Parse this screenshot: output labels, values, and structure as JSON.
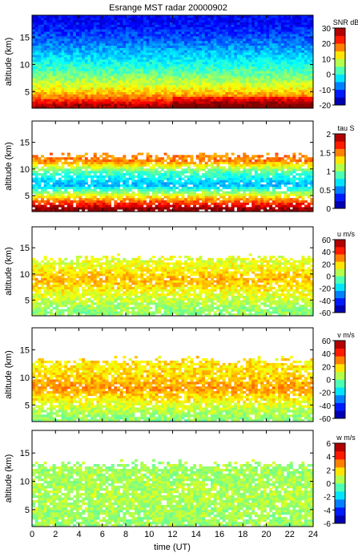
{
  "chart_data": {
    "type": "heatmap",
    "title": "Esrange MST radar 20000902",
    "xlabel": "time (UT)",
    "xlim": [
      0,
      24
    ],
    "x_ticks": [
      "0",
      "2",
      "4",
      "6",
      "8",
      "10",
      "12",
      "14",
      "16",
      "18",
      "20",
      "22",
      "24"
    ],
    "panels": [
      {
        "variable": "snr",
        "ylabel": "altitude (km)",
        "ylim": [
          2,
          19
        ],
        "y_ticks": [
          "5",
          "10",
          "15"
        ],
        "colorbar_label": "SNR dB",
        "colorbar_range": [
          -20,
          30
        ],
        "colorbar_ticks": [
          "30",
          "20",
          "10",
          "0",
          "-10",
          "-20"
        ],
        "description_profile": [
          {
            "altitude": 2.5,
            "value": 28
          },
          {
            "altitude": 4,
            "value": 18
          },
          {
            "altitude": 6,
            "value": 10
          },
          {
            "altitude": 9,
            "value": 2
          },
          {
            "altitude": 12,
            "value": -4
          },
          {
            "altitude": 15,
            "value": -10
          },
          {
            "altitude": 18,
            "value": -14
          }
        ]
      },
      {
        "variable": "tau",
        "ylabel": "altitude (km)",
        "ylim": [
          2,
          19
        ],
        "y_ticks": [
          "5",
          "10",
          "15"
        ],
        "colorbar_label": "tau S",
        "colorbar_range": [
          0,
          2
        ],
        "colorbar_ticks": [
          "2",
          "1.5",
          "1",
          "0.5",
          "0"
        ],
        "data_top_km": 12.5,
        "description_profile": [
          {
            "altitude": 2.5,
            "value": 2.0
          },
          {
            "altitude": 4.5,
            "value": 1.4
          },
          {
            "altitude": 7,
            "value": 0.6
          },
          {
            "altitude": 9.5,
            "value": 0.9
          },
          {
            "altitude": 11.5,
            "value": 1.5
          }
        ]
      },
      {
        "variable": "u",
        "ylabel": "altitude (km)",
        "ylim": [
          2,
          19
        ],
        "y_ticks": [
          "5",
          "10",
          "15"
        ],
        "colorbar_label": "u m/s",
        "colorbar_range": [
          -60,
          60
        ],
        "colorbar_ticks": [
          "60",
          "40",
          "20",
          "0",
          "-20",
          "-40",
          "-60"
        ],
        "data_top_km": 13,
        "description_profile": [
          {
            "altitude": 3,
            "value": 2
          },
          {
            "altitude": 6,
            "value": 12
          },
          {
            "altitude": 9,
            "value": 24
          },
          {
            "altitude": 12,
            "value": 12
          }
        ]
      },
      {
        "variable": "v",
        "ylabel": "altitude (km)",
        "ylim": [
          2,
          19
        ],
        "y_ticks": [
          "5",
          "10",
          "15"
        ],
        "colorbar_label": "v m/s",
        "colorbar_range": [
          -60,
          60
        ],
        "colorbar_ticks": [
          "60",
          "40",
          "20",
          "0",
          "-20",
          "-40",
          "-60"
        ],
        "data_top_km": 13,
        "description_profile": [
          {
            "altitude": 3,
            "value": 2
          },
          {
            "altitude": 6,
            "value": 16
          },
          {
            "altitude": 8,
            "value": 28
          },
          {
            "altitude": 11,
            "value": 18
          }
        ]
      },
      {
        "variable": "w",
        "ylabel": "altitude (km)",
        "ylim": [
          2,
          19
        ],
        "y_ticks": [
          "5",
          "10",
          "15"
        ],
        "colorbar_label": "w m/s",
        "colorbar_range": [
          -6,
          6
        ],
        "colorbar_ticks": [
          "6",
          "4",
          "2",
          "0",
          "-2",
          "-4",
          "-6"
        ],
        "data_top_km": 13,
        "description_profile": [
          {
            "altitude": 3,
            "value": 0.3
          },
          {
            "altitude": 8,
            "value": 0.6
          },
          {
            "altitude": 12,
            "value": 0.4
          }
        ]
      }
    ]
  }
}
